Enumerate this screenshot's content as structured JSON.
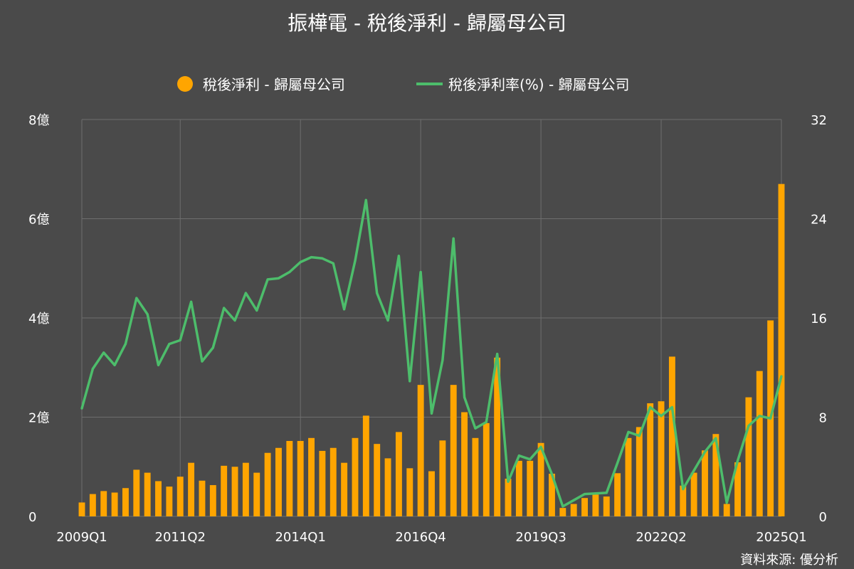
{
  "chart_data": {
    "type": "bar",
    "title": "振樺電 - 稅後淨利 - 歸屬母公司",
    "source_note": "資料來源: 優分析",
    "legend_placement": "top",
    "grid": true,
    "x_ticks": [
      "2009Q1",
      "2011Q2",
      "2014Q1",
      "2016Q4",
      "2019Q3",
      "2022Q2",
      "2025Q1"
    ],
    "y_left": {
      "ticks": [
        "0",
        "2億",
        "4億",
        "6億",
        "8億"
      ],
      "range": [
        0,
        8
      ],
      "unit": "億"
    },
    "y_right": {
      "ticks": [
        "0",
        "8",
        "16",
        "24",
        "32"
      ],
      "range": [
        0,
        32
      ]
    },
    "categories": [
      "2009Q1",
      "2009Q2",
      "2009Q3",
      "2009Q4",
      "2010Q1",
      "2010Q2",
      "2010Q3",
      "2010Q4",
      "2011Q1",
      "2011Q2",
      "2011Q3",
      "2011Q4",
      "2012Q1",
      "2012Q2",
      "2012Q3",
      "2012Q4",
      "2013Q1",
      "2013Q2",
      "2013Q3",
      "2013Q4",
      "2014Q1",
      "2014Q2",
      "2014Q3",
      "2014Q4",
      "2015Q1",
      "2015Q2",
      "2015Q3",
      "2015Q4",
      "2016Q1",
      "2016Q2",
      "2016Q3",
      "2016Q4",
      "2017Q1",
      "2017Q2",
      "2017Q3",
      "2017Q4",
      "2018Q1",
      "2018Q2",
      "2018Q3",
      "2018Q4",
      "2019Q1",
      "2019Q2",
      "2019Q3",
      "2019Q4",
      "2020Q1",
      "2020Q2",
      "2020Q3",
      "2020Q4",
      "2021Q1",
      "2021Q2",
      "2021Q3",
      "2021Q4",
      "2022Q1",
      "2022Q2",
      "2022Q3",
      "2022Q4",
      "2023Q1",
      "2023Q2",
      "2023Q3",
      "2023Q4",
      "2024Q1",
      "2024Q2",
      "2024Q3",
      "2024Q4",
      "2025Q1"
    ],
    "series": [
      {
        "name": "稅後淨利 - 歸屬母公司",
        "type": "bar",
        "axis": "left",
        "color": "#ffa500",
        "values": [
          0.28,
          0.45,
          0.51,
          0.48,
          0.57,
          0.94,
          0.88,
          0.71,
          0.6,
          0.8,
          1.08,
          0.72,
          0.63,
          1.02,
          1.0,
          1.08,
          0.88,
          1.28,
          1.38,
          1.52,
          1.52,
          1.58,
          1.32,
          1.38,
          1.08,
          1.58,
          2.03,
          1.46,
          1.17,
          1.7,
          0.97,
          2.65,
          0.91,
          1.53,
          2.65,
          2.1,
          1.58,
          1.88,
          3.2,
          0.76,
          1.12,
          1.12,
          1.48,
          0.86,
          0.17,
          0.25,
          0.37,
          0.44,
          0.4,
          0.87,
          1.58,
          1.8,
          2.28,
          2.32,
          3.22,
          0.62,
          0.88,
          1.33,
          1.66,
          0.25,
          1.09,
          2.4,
          2.93,
          3.95,
          6.7
        ]
      },
      {
        "name": "稅後淨利率(%) - 歸屬母公司",
        "type": "line",
        "axis": "right",
        "color": "#4dbd6b",
        "values": [
          8.7,
          11.9,
          13.2,
          12.2,
          13.9,
          17.6,
          16.3,
          12.2,
          13.9,
          14.2,
          17.3,
          12.5,
          13.6,
          16.8,
          15.8,
          18.0,
          16.6,
          19.1,
          19.2,
          19.7,
          20.5,
          20.9,
          20.8,
          20.4,
          16.7,
          20.6,
          25.5,
          18.0,
          15.8,
          21.0,
          10.9,
          19.7,
          8.3,
          12.6,
          22.4,
          9.6,
          7.1,
          7.6,
          13.1,
          2.8,
          4.9,
          4.6,
          5.6,
          3.4,
          0.8,
          1.3,
          1.8,
          1.85,
          1.9,
          4.3,
          6.8,
          6.5,
          8.8,
          8.1,
          8.8,
          2.2,
          3.7,
          5.2,
          6.3,
          1.1,
          4.5,
          7.3,
          8.1,
          7.9,
          11.3
        ]
      }
    ]
  }
}
